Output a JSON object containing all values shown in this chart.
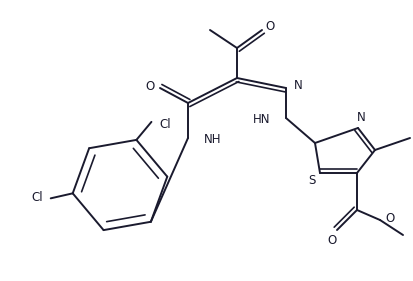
{
  "bg_color": "#ffffff",
  "line_color": "#1a1a2e",
  "line_width": 1.4,
  "font_size": 8.5,
  "fig_width": 4.14,
  "fig_height": 2.81,
  "dpi": 100,
  "xlim": [
    0,
    414
  ],
  "ylim": [
    0,
    281
  ]
}
